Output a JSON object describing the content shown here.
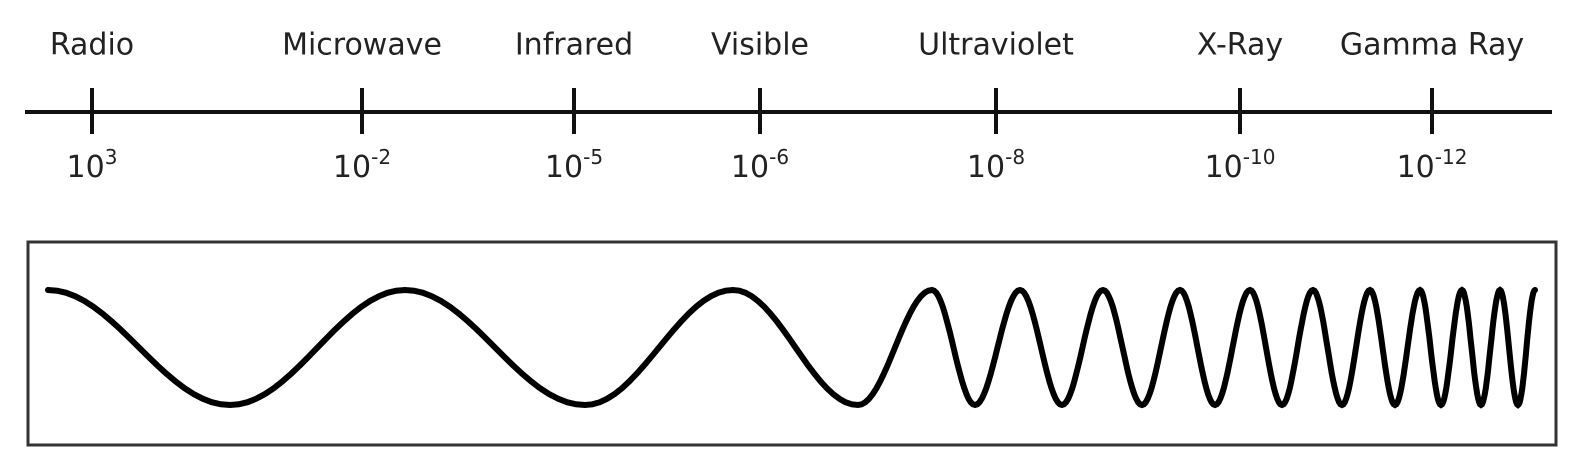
{
  "bands": [
    {
      "label": "Radio",
      "base": "10",
      "exponent": "3"
    },
    {
      "label": "Microwave",
      "base": "10",
      "exponent": "-2"
    },
    {
      "label": "Infrared",
      "base": "10",
      "exponent": "-5"
    },
    {
      "label": "Visible",
      "base": "10",
      "exponent": "-6"
    },
    {
      "label": "Ultraviolet",
      "base": "10",
      "exponent": "-8"
    },
    {
      "label": "X-Ray",
      "base": "10",
      "exponent": "-10"
    },
    {
      "label": "Gamma Ray",
      "base": "10",
      "exponent": "-12"
    }
  ]
}
